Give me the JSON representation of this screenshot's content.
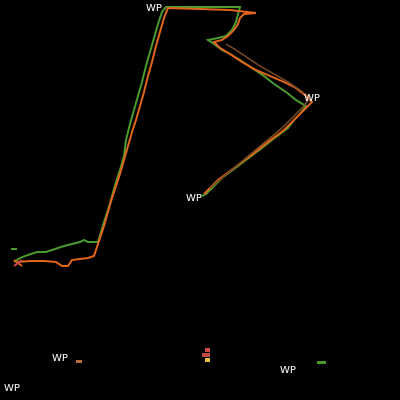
{
  "map": {
    "background_color": "#000000",
    "track_colors": {
      "green": "#4a9a2e",
      "orange": "#e0641c",
      "brown": "#7a4a24"
    },
    "waypoint_label_color": "#ffffff",
    "waypoints": [
      {
        "label": "WP"
      },
      {
        "label": "WP"
      },
      {
        "label": "WP"
      },
      {
        "label": "WP"
      },
      {
        "label": "WP"
      },
      {
        "label": "WP"
      }
    ],
    "markers": [
      {
        "name": "start-marker-icon",
        "color": "#e0641c"
      },
      {
        "name": "unit-marker-icon",
        "color": "#d04a4a"
      },
      {
        "name": "unit-marker-small-icon",
        "color": "#b86a3a"
      },
      {
        "name": "unit-marker-green-icon",
        "color": "#4a9a2e"
      }
    ]
  }
}
